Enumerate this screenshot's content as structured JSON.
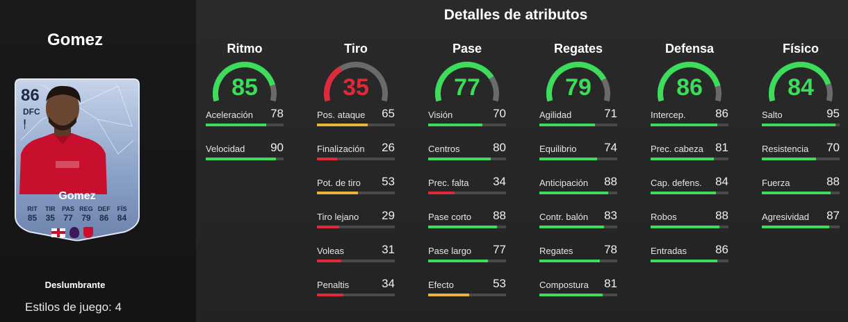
{
  "player": {
    "name": "Gomez",
    "card": {
      "rating": "86",
      "position": "DFC",
      "name": "Gomez",
      "stats": [
        {
          "label": "RIT",
          "value": "85"
        },
        {
          "label": "TIR",
          "value": "35"
        },
        {
          "label": "PAS",
          "value": "77"
        },
        {
          "label": "REG",
          "value": "79"
        },
        {
          "label": "DEF",
          "value": "86"
        },
        {
          "label": "FÍS",
          "value": "84"
        }
      ]
    },
    "playstyle": "Deslumbrante",
    "playstyles_count": "Estilos de juego: 4"
  },
  "attributes": {
    "title": "Detalles de atributos",
    "colors": {
      "high": "#3ddc5a",
      "mid": "#e6b53a",
      "low": "#e0293a",
      "track": "#4a4a4a"
    },
    "categories": [
      {
        "name": "Ritmo",
        "value": 85,
        "items": [
          {
            "label": "Aceleración",
            "value": 78
          },
          {
            "label": "Velocidad",
            "value": 90
          }
        ]
      },
      {
        "name": "Tiro",
        "value": 35,
        "items": [
          {
            "label": "Pos. ataque",
            "value": 65
          },
          {
            "label": "Finalización",
            "value": 26
          },
          {
            "label": "Pot. de tiro",
            "value": 53
          },
          {
            "label": "Tiro lejano",
            "value": 29
          },
          {
            "label": "Voleas",
            "value": 31
          },
          {
            "label": "Penaltis",
            "value": 34
          }
        ]
      },
      {
        "name": "Pase",
        "value": 77,
        "items": [
          {
            "label": "Visión",
            "value": 70
          },
          {
            "label": "Centros",
            "value": 80
          },
          {
            "label": "Prec. falta",
            "value": 34
          },
          {
            "label": "Pase corto",
            "value": 88
          },
          {
            "label": "Pase largo",
            "value": 77
          },
          {
            "label": "Efecto",
            "value": 53
          }
        ]
      },
      {
        "name": "Regates",
        "value": 79,
        "items": [
          {
            "label": "Agilidad",
            "value": 71
          },
          {
            "label": "Equilibrio",
            "value": 74
          },
          {
            "label": "Anticipación",
            "value": 88
          },
          {
            "label": "Contr. balón",
            "value": 83
          },
          {
            "label": "Regates",
            "value": 78
          },
          {
            "label": "Compostura",
            "value": 81
          }
        ]
      },
      {
        "name": "Defensa",
        "value": 86,
        "items": [
          {
            "label": "Intercep.",
            "value": 86
          },
          {
            "label": "Prec. cabeza",
            "value": 81
          },
          {
            "label": "Cap. defens.",
            "value": 84
          },
          {
            "label": "Robos",
            "value": 88
          },
          {
            "label": "Entradas",
            "value": 86
          }
        ]
      },
      {
        "name": "Físico",
        "value": 84,
        "items": [
          {
            "label": "Salto",
            "value": 95
          },
          {
            "label": "Resistencia",
            "value": 70
          },
          {
            "label": "Fuerza",
            "value": 88
          },
          {
            "label": "Agresividad",
            "value": 87
          }
        ]
      }
    ]
  }
}
